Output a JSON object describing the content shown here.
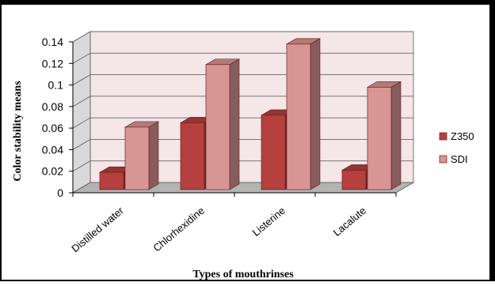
{
  "chart_data": {
    "type": "bar",
    "categories": [
      "Distilled water",
      "Chlorhexidine",
      "Listerine",
      "Lacalute"
    ],
    "series": [
      {
        "name": "Z350",
        "values": [
          0.016,
          0.062,
          0.069,
          0.018
        ],
        "color": "#b5403d"
      },
      {
        "name": "SDI",
        "values": [
          0.058,
          0.116,
          0.135,
          0.095
        ],
        "color": "#d99594"
      }
    ],
    "title": "",
    "xlabel": "Types of mouthrinses",
    "ylabel": "Color stability means",
    "ylim": [
      0,
      0.14
    ],
    "yticks": [
      "0",
      "0.02",
      "0.04",
      "0.06",
      "0.08",
      "0.1",
      "0.12",
      "0.14"
    ],
    "grid": true,
    "legend_position": "right",
    "wall_color": "#f5e6e8",
    "floor_color": "#b3b3b3"
  }
}
